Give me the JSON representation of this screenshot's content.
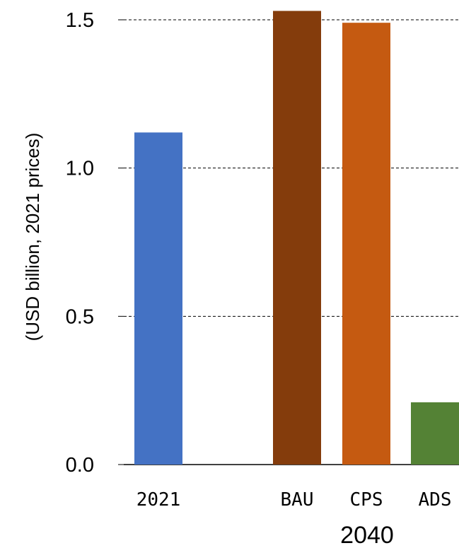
{
  "chart_data": {
    "type": "bar",
    "ylabel": "(USD billion, 2021 prices)",
    "ylim": [
      0,
      1.5
    ],
    "yticks": [
      "0.0",
      "0.5",
      "1.0",
      "1.5"
    ],
    "grid": true,
    "categories": [
      "2021",
      "BAU",
      "CPS",
      "ADS"
    ],
    "group_label": "2040",
    "values": [
      1.12,
      1.53,
      1.49,
      0.21
    ],
    "colors": [
      "#4472C4",
      "#843C0C",
      "#C55A11",
      "#548235"
    ]
  }
}
